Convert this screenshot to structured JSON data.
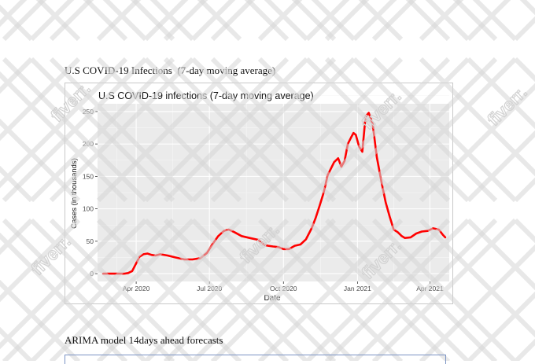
{
  "document": {
    "heading_1": "U.S COVID-19 Infections  (7-day moving average)",
    "heading_2": "ARIMA model 14days ahead forecasts",
    "watermark_text": "fiverr."
  },
  "chart_data": {
    "type": "line",
    "title": "U.S COVID-19 infections (7-day moving average)",
    "xlabel": "Date",
    "ylabel": "Cases (in thousands)",
    "x_range": [
      "2020-02-13",
      "2021-04-25"
    ],
    "ylim": [
      -12,
      262
    ],
    "y_ticks": [
      0,
      50,
      100,
      150,
      200,
      250
    ],
    "x_ticks": [
      {
        "date": "2020-04-01",
        "label": "Apr 2020"
      },
      {
        "date": "2020-07-01",
        "label": "Jul 2020"
      },
      {
        "date": "2020-10-01",
        "label": "Oct 2020"
      },
      {
        "date": "2021-01-01",
        "label": "Jan 2021"
      },
      {
        "date": "2021-04-01",
        "label": "Apr 2021"
      }
    ],
    "grid": true,
    "line_color": "#ff0000",
    "panel_color": "#ebebeb",
    "series": [
      {
        "x": [
          "2020-02-20",
          "2020-03-01",
          "2020-03-10",
          "2020-03-17",
          "2020-03-22",
          "2020-03-27",
          "2020-04-01",
          "2020-04-05",
          "2020-04-10",
          "2020-04-15",
          "2020-04-20",
          "2020-04-25",
          "2020-05-01",
          "2020-05-10",
          "2020-05-20",
          "2020-05-31",
          "2020-06-10",
          "2020-06-20",
          "2020-06-28",
          "2020-07-05",
          "2020-07-12",
          "2020-07-19",
          "2020-07-25",
          "2020-08-01",
          "2020-08-10",
          "2020-08-20",
          "2020-08-31",
          "2020-09-08",
          "2020-09-12",
          "2020-09-18",
          "2020-09-25",
          "2020-10-01",
          "2020-10-08",
          "2020-10-15",
          "2020-10-22",
          "2020-10-29",
          "2020-11-05",
          "2020-11-10",
          "2020-11-15",
          "2020-11-20",
          "2020-11-25",
          "2020-11-29",
          "2020-12-03",
          "2020-12-08",
          "2020-12-12",
          "2020-12-16",
          "2020-12-20",
          "2020-12-24",
          "2020-12-27",
          "2020-12-30",
          "2021-01-03",
          "2021-01-07",
          "2021-01-11",
          "2021-01-15",
          "2021-01-20",
          "2021-01-25",
          "2021-01-31",
          "2021-02-05",
          "2021-02-10",
          "2021-02-15",
          "2021-02-20",
          "2021-02-25",
          "2021-03-01",
          "2021-03-08",
          "2021-03-15",
          "2021-03-22",
          "2021-03-29",
          "2021-04-05",
          "2021-04-12",
          "2021-04-17",
          "2021-04-20"
        ],
        "y": [
          0,
          0,
          0,
          0,
          1,
          4,
          16,
          26,
          30,
          31,
          29,
          28,
          30,
          28,
          25,
          22,
          22,
          24,
          32,
          46,
          58,
          66,
          68,
          64,
          58,
          55,
          52,
          44,
          43,
          42,
          41,
          38,
          38,
          43,
          45,
          53,
          70,
          86,
          105,
          125,
          152,
          162,
          172,
          178,
          165,
          174,
          200,
          210,
          217,
          214,
          196,
          188,
          242,
          248,
          230,
          180,
          140,
          110,
          88,
          68,
          64,
          58,
          55,
          56,
          62,
          65,
          66,
          70,
          68,
          60,
          56
        ]
      }
    ]
  }
}
